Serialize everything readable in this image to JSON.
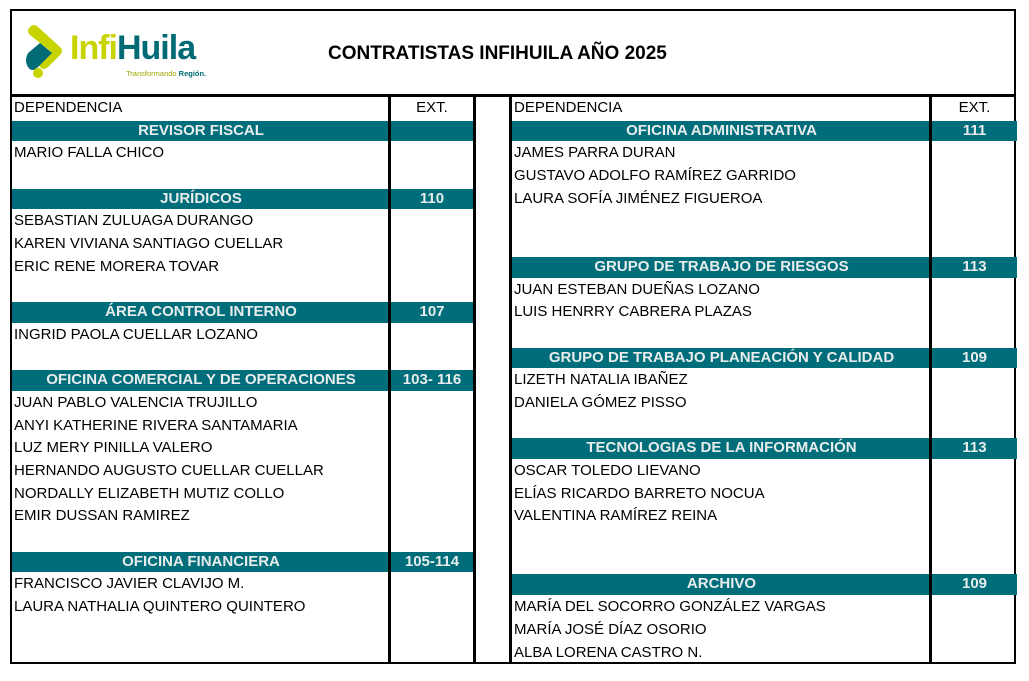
{
  "header": {
    "logo_text_a": "Infi",
    "logo_text_b": "Huila",
    "logo_tagline_a": "Transformando",
    "logo_tagline_b": "Región.",
    "title": "CONTRATISTAS INFIHUILA AÑO 2025"
  },
  "colors": {
    "section_bg": "#006e7a",
    "logo_green": "#c8d400",
    "logo_teal": "#006b74"
  },
  "columns": {
    "dependencia": "DEPENDENCIA",
    "ext": "EXT."
  },
  "left": [
    {
      "type": "section",
      "text": "REVISOR FISCAL",
      "ext": ""
    },
    {
      "type": "name",
      "text": "MARIO FALLA CHICO"
    },
    {
      "type": "blank"
    },
    {
      "type": "section",
      "text": "JURÍDICOS",
      "ext": "110"
    },
    {
      "type": "name",
      "text": "SEBASTIAN ZULUAGA DURANGO"
    },
    {
      "type": "name",
      "text": "KAREN VIVIANA SANTIAGO CUELLAR"
    },
    {
      "type": "name",
      "text": "ERIC RENE MORERA TOVAR"
    },
    {
      "type": "blank"
    },
    {
      "type": "section",
      "text": "ÁREA CONTROL INTERNO",
      "ext": "107"
    },
    {
      "type": "name",
      "text": "INGRID PAOLA CUELLAR LOZANO"
    },
    {
      "type": "blank"
    },
    {
      "type": "section",
      "text": "OFICINA COMERCIAL Y DE OPERACIONES",
      "ext": "103- 116"
    },
    {
      "type": "name",
      "text": "JUAN PABLO VALENCIA TRUJILLO"
    },
    {
      "type": "name",
      "text": "ANYI KATHERINE RIVERA SANTAMARIA"
    },
    {
      "type": "name",
      "text": "LUZ MERY PINILLA VALERO"
    },
    {
      "type": "name",
      "text": "HERNANDO AUGUSTO CUELLAR CUELLAR"
    },
    {
      "type": "name",
      "text": "NORDALLY ELIZABETH MUTIZ COLLO"
    },
    {
      "type": "name",
      "text": "EMIR DUSSAN RAMIREZ"
    },
    {
      "type": "blank"
    },
    {
      "type": "section",
      "text": "OFICINA FINANCIERA",
      "ext": "105-114"
    },
    {
      "type": "name",
      "text": "FRANCISCO JAVIER CLAVIJO M."
    },
    {
      "type": "name",
      "text": "LAURA NATHALIA QUINTERO QUINTERO"
    },
    {
      "type": "blank"
    },
    {
      "type": "blank"
    }
  ],
  "right": [
    {
      "type": "section",
      "text": "OFICINA ADMINISTRATIVA",
      "ext": "111"
    },
    {
      "type": "name",
      "text": "JAMES PARRA DURAN"
    },
    {
      "type": "name",
      "text": "GUSTAVO ADOLFO RAMÍREZ GARRIDO"
    },
    {
      "type": "name",
      "text": "LAURA SOFÍA JIMÉNEZ FIGUEROA"
    },
    {
      "type": "blank"
    },
    {
      "type": "blank"
    },
    {
      "type": "section",
      "text": "GRUPO DE TRABAJO DE RIESGOS",
      "ext": "113"
    },
    {
      "type": "name",
      "text": "JUAN ESTEBAN DUEÑAS LOZANO"
    },
    {
      "type": "name",
      "text": "LUIS HENRRY CABRERA PLAZAS"
    },
    {
      "type": "blank"
    },
    {
      "type": "section",
      "text": "GRUPO DE TRABAJO PLANEACIÓN Y CALIDAD",
      "ext": "109"
    },
    {
      "type": "name",
      "text": "LIZETH NATALIA IBAÑEZ"
    },
    {
      "type": "name",
      "text": "DANIELA GÓMEZ PISSO"
    },
    {
      "type": "blank"
    },
    {
      "type": "section",
      "text": "TECNOLOGIAS DE LA INFORMACIÓN",
      "ext": "113"
    },
    {
      "type": "name",
      "text": "OSCAR TOLEDO LIEVANO"
    },
    {
      "type": "name",
      "text": "ELÍAS RICARDO BARRETO NOCUA"
    },
    {
      "type": "name",
      "text": "VALENTINA RAMÍREZ REINA"
    },
    {
      "type": "blank"
    },
    {
      "type": "blank"
    },
    {
      "type": "section",
      "text": "ARCHIVO",
      "ext": "109"
    },
    {
      "type": "name",
      "text": "MARÍA DEL SOCORRO GONZÁLEZ VARGAS"
    },
    {
      "type": "name",
      "text": "MARÍA JOSÉ DÍAZ OSORIO"
    },
    {
      "type": "name",
      "text": "ALBA LORENA CASTRO N."
    }
  ]
}
